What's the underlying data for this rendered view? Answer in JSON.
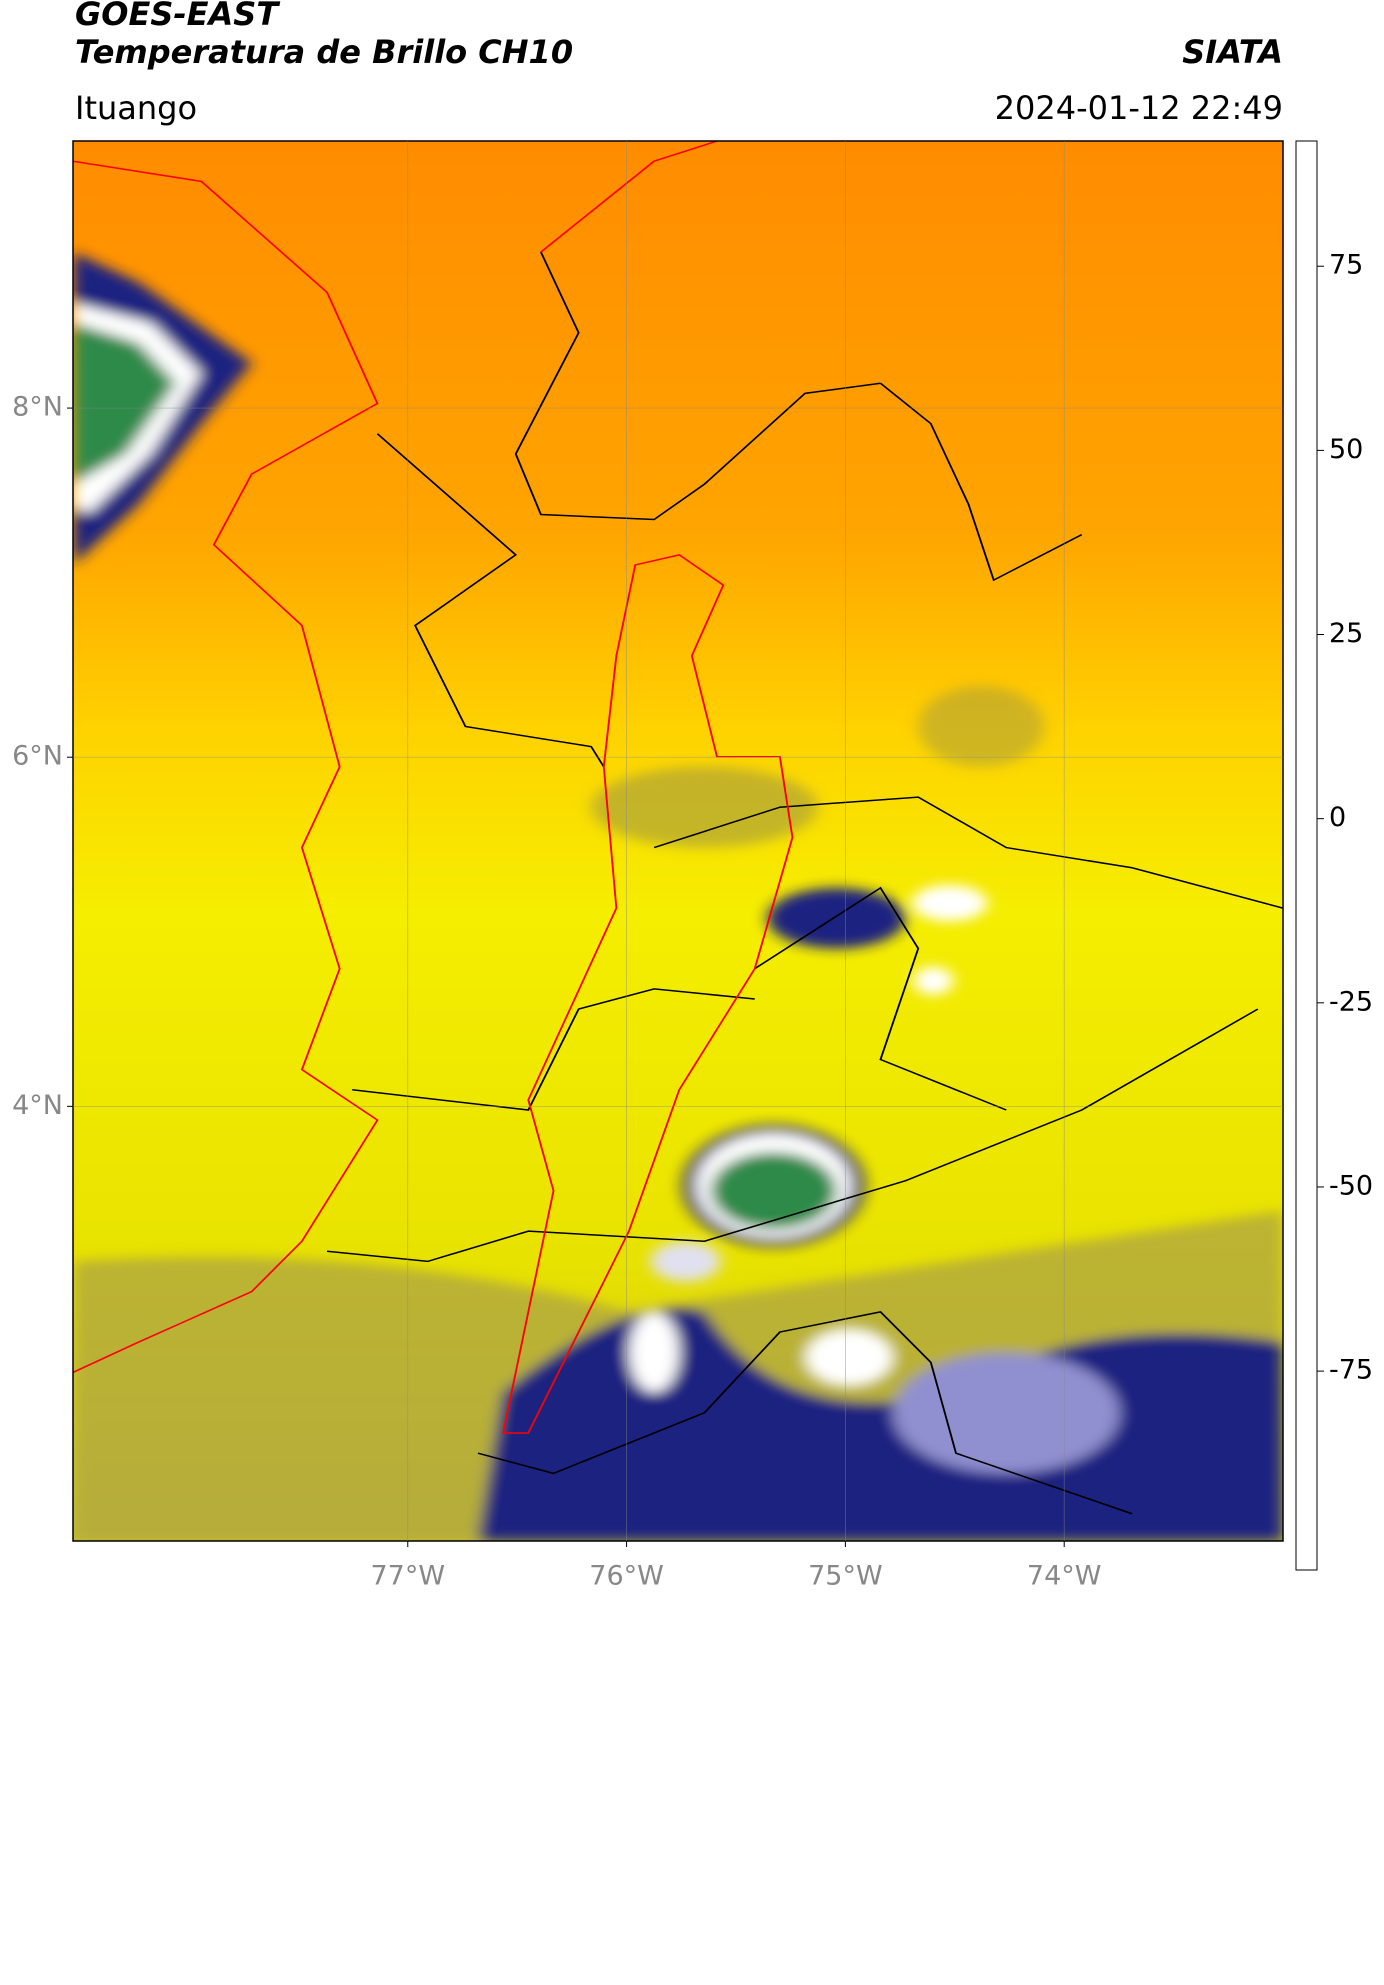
{
  "header": {
    "title": "GOES-EAST",
    "subtitle": "Temperatura de Brillo CH10",
    "source": "SIATA",
    "location": "Ituango",
    "datetime": "2024-01-12 22:49"
  },
  "map": {
    "xlim": [
      -78.53,
      -73.0
    ],
    "ylim": [
      1.51,
      9.53
    ],
    "xticks": [
      {
        "value": -77,
        "label": "77°W"
      },
      {
        "value": -76,
        "label": "76°W"
      },
      {
        "value": -75,
        "label": "75°W"
      },
      {
        "value": -74,
        "label": "74°W"
      }
    ],
    "yticks": [
      {
        "value": 8,
        "label": "8°N"
      },
      {
        "value": 6,
        "label": "6°N"
      },
      {
        "value": 4,
        "label": "4°N"
      }
    ],
    "grid": true
  },
  "colorbar": {
    "lim": [
      -102,
      92
    ],
    "ticks": [
      75,
      50,
      25,
      0,
      -25,
      -50,
      -75
    ],
    "stops": [
      {
        "value": -102,
        "color": "#ffffff"
      },
      {
        "value": -97,
        "color": "#ffffff"
      },
      {
        "value": -96,
        "color": "#00e5e5"
      },
      {
        "value": -80,
        "color": "#20a080"
      },
      {
        "value": -65,
        "color": "#2e7d32"
      },
      {
        "value": -57,
        "color": "#e0ecd8"
      },
      {
        "value": -50,
        "color": "#ffffff"
      },
      {
        "value": -40,
        "color": "#7070c0"
      },
      {
        "value": -30,
        "color": "#101a80"
      },
      {
        "value": -25,
        "color": "#303060"
      },
      {
        "value": -20,
        "color": "#a0a040"
      },
      {
        "value": -15,
        "color": "#ffff00"
      },
      {
        "value": -5,
        "color": "#ffd000"
      },
      {
        "value": 0,
        "color": "#ff9a00"
      },
      {
        "value": 5,
        "color": "#ff5000"
      },
      {
        "value": 8,
        "color": "#ff0000"
      },
      {
        "value": 8.3,
        "color": "#000000"
      },
      {
        "value": 92,
        "color": "#000000"
      }
    ]
  }
}
